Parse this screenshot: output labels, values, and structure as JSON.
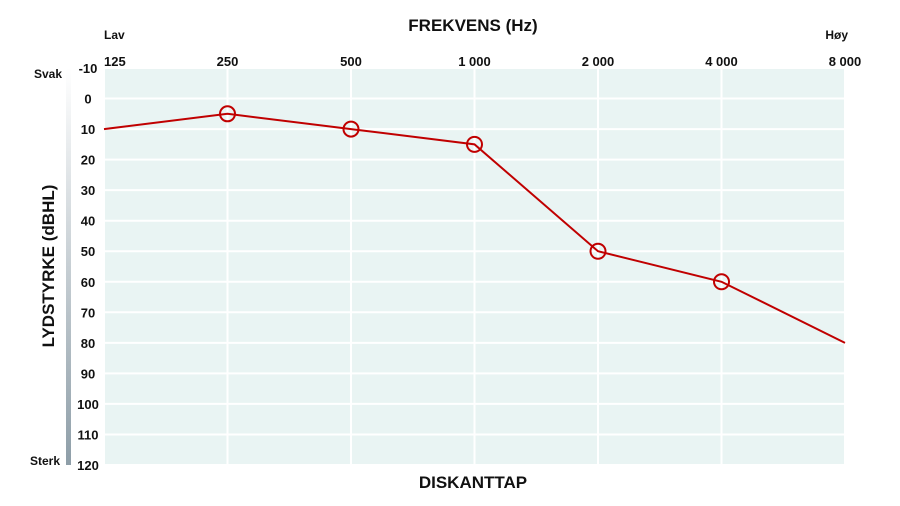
{
  "chart_data": {
    "type": "line",
    "title": "FREKVENS (Hz)",
    "xlabel": "DISKANTTAP",
    "ylabel": "LYDSTYRKE (dBHL)",
    "annotations": {
      "x_low": "Lav",
      "x_high": "Høy",
      "y_low": "Svak",
      "y_high": "Sterk"
    },
    "x": [
      125,
      250,
      500,
      1000,
      2000,
      4000,
      8000
    ],
    "values": [
      10,
      5,
      10,
      15,
      50,
      60,
      80
    ],
    "color": "#c00000",
    "xscale": "log",
    "xlim": [
      125,
      8000
    ],
    "xticks": [
      125,
      250,
      500,
      {
        "value": 1000,
        "label": "1 000"
      },
      {
        "value": 2000,
        "label": "2 000"
      },
      {
        "value": 4000,
        "label": "4 000"
      },
      {
        "value": 8000,
        "label": "8 000"
      }
    ],
    "ylim": [
      -10,
      120
    ],
    "yinverted": true,
    "yticks": [
      -10,
      0,
      10,
      20,
      30,
      40,
      50,
      60,
      70,
      80,
      90,
      100,
      110,
      120
    ],
    "grid": true,
    "background": "#e9f4f3"
  }
}
